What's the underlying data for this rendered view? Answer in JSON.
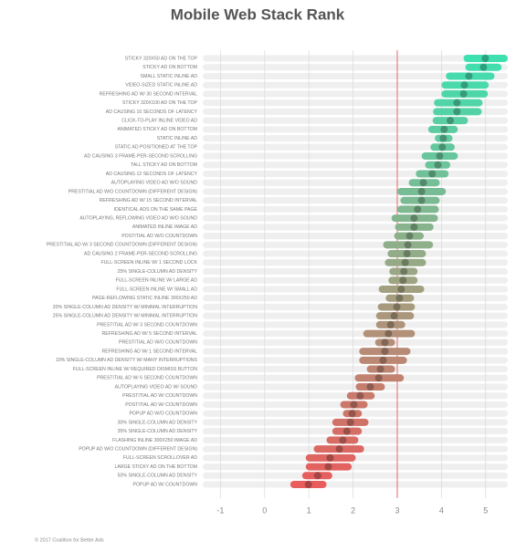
{
  "chart_data": {
    "type": "range_dot",
    "title": "Mobile Web Stack Rank",
    "footer": "© 2017 Coalition for Better Ads",
    "categories": [
      "STICKY 320X50 AD ON THE TOP",
      "STICKY AD ON BOTTOM",
      "SMALL STATIC INLINE AD",
      "VIDEO-SIZED STATIC INLINE AD",
      "REFRESHING AD W/ 30 SECOND INTERVAL",
      "STICKY 320X100 AD ON THE TOP",
      "AD CAUSING 10 SECONDS OF LATENCY",
      "CLICK-TO-PLAY INLINE VIDEO AD",
      "ANIMATED STICKY AD ON BOTTOM",
      "STATIC INLINE AD",
      "STATIC AD POSITIONED AT THE TOP",
      "AD CAUSING 3 FRAME-PER-SECOND SCROLLING",
      "TALL STICKY AD ON BOTTOM",
      "AD CAUSING 12 SECONDS OF LATENCY",
      "AUTOPLAYING VIDEO AD W/O SOUND",
      "PRESTITIAL AD W/O COUNTDOWN (DIFFERENT DESIGN)",
      "REFRESHING AD W/ 15 SECOND INTERVAL",
      "IDENTICAL ADS ON THE SAME PAGE",
      "AUTOPLAYING, REFLOWING VIDEO AD W/O SOUND",
      "ANIMATED INLINE IMAGE AD",
      "POSTITIAL AD W/O COUNTDOWN",
      "PRESTITIAL AD W/ 3 SECOND COUNTDOWN (DIFFERENT DESIGN)",
      "AD CAUSING 2 FRAME-PER-SECOND SCROLLING",
      "FULL-SCREEN INLINE W/ 1 SECOND LOCK",
      "25% SINGLE-COLUMN AD DENSITY",
      "FULL-SCREEN INLINE W/ LARGE AD",
      "FULL-SCREEN INLINE W/ SMALL AD",
      "PAGE-REFLOWING STATIC INLINE 300X250 AD",
      "20% SINGLE-COLUMN AD DENSITY W/ MINIMAL INTERRUPTION",
      "25% SINGLE-COLUMN AD DENSITY W/ MINIMAL INTERRUPTION",
      "PRESTITIAL AD W/ 3 SECOND COUNTDOWN",
      "REFRESHING AD W/ 5 SECOND INTERVAL",
      "PRESTITIAL AD W/O COUNTDOWN",
      "REFRESHING AD W/ 1 SECOND INTERVAL",
      "10% SINGLE-COLUMN AD DENSITY W/ MANY INTERRUPTIONS",
      "FULL-SCREEN INLINE W/ REQUIRED DISMISS BUTTON",
      "PRESTITIAL AD W/ 6 SECOND COUNTDOWN",
      "AUTOPLAYING VIDEO AD W/ SOUND",
      "PRESTITIAL AD W/ COUNTDOWN",
      "POSTITIAL AD W/ COUNTDOWN",
      "POPUP AD W/O COUNTDOWN",
      "30% SINGLE-COLUMN AD DENSITY",
      "35% SINGLE-COLUMN AD DENSITY",
      "FLASHING INLINE 300X250 IMAGE AD",
      "POPUP AD W/O COUNTDOWN (DIFFERENT DESIGN)",
      "FULL-SCREEN SCROLLOVER AD",
      "LARGE STICKY AD ON THE BOTTOM",
      "50% SINGLE-COLUMN AD DENSITY",
      "POPUP AD W/ COUNTDOWN"
    ],
    "values": [
      4.99,
      4.95,
      4.62,
      4.52,
      4.5,
      4.35,
      4.35,
      4.2,
      4.06,
      4.04,
      4.02,
      3.96,
      3.92,
      3.79,
      3.59,
      3.55,
      3.55,
      3.46,
      3.38,
      3.38,
      3.28,
      3.24,
      3.22,
      3.18,
      3.15,
      3.13,
      3.09,
      3.05,
      2.99,
      2.93,
      2.85,
      2.8,
      2.72,
      2.72,
      2.68,
      2.62,
      2.58,
      2.39,
      2.16,
      2.02,
      1.98,
      1.94,
      1.86,
      1.77,
      1.69,
      1.48,
      1.44,
      1.2,
      0.99
    ],
    "low": [
      4.5,
      4.54,
      4.1,
      4.0,
      4.0,
      3.83,
      3.81,
      3.8,
      3.7,
      3.85,
      3.75,
      3.55,
      3.63,
      3.42,
      3.26,
      3.0,
      3.07,
      3.0,
      2.87,
      2.95,
      2.93,
      2.68,
      2.78,
      2.72,
      2.82,
      2.8,
      2.58,
      2.74,
      2.56,
      2.52,
      2.52,
      2.23,
      2.5,
      2.14,
      2.14,
      2.31,
      2.04,
      2.06,
      1.86,
      1.71,
      1.77,
      1.53,
      1.53,
      1.4,
      1.11,
      0.93,
      0.93,
      0.85,
      0.58
    ],
    "high": [
      5.5,
      5.36,
      5.2,
      5.07,
      5.05,
      4.93,
      4.91,
      4.6,
      4.37,
      4.25,
      4.3,
      4.37,
      4.2,
      4.16,
      3.96,
      4.1,
      3.96,
      3.94,
      3.92,
      3.82,
      3.6,
      3.81,
      3.65,
      3.65,
      3.46,
      3.46,
      3.61,
      3.38,
      3.4,
      3.38,
      3.18,
      3.4,
      2.95,
      3.3,
      3.22,
      2.95,
      3.15,
      2.72,
      2.49,
      2.33,
      2.2,
      2.35,
      2.2,
      2.12,
      2.25,
      2.06,
      1.97,
      1.53,
      1.4
    ],
    "colors": [
      "#3ee0b0",
      "#9aa784",
      "#e85c5c"
    ],
    "track_color": "#efefef",
    "reference_line": 3,
    "reference_color": "#e06a6a",
    "xlim": [
      -1.4,
      5.5
    ],
    "xticks": [
      -1,
      0,
      1,
      2,
      3,
      4,
      5
    ],
    "grid": true
  }
}
